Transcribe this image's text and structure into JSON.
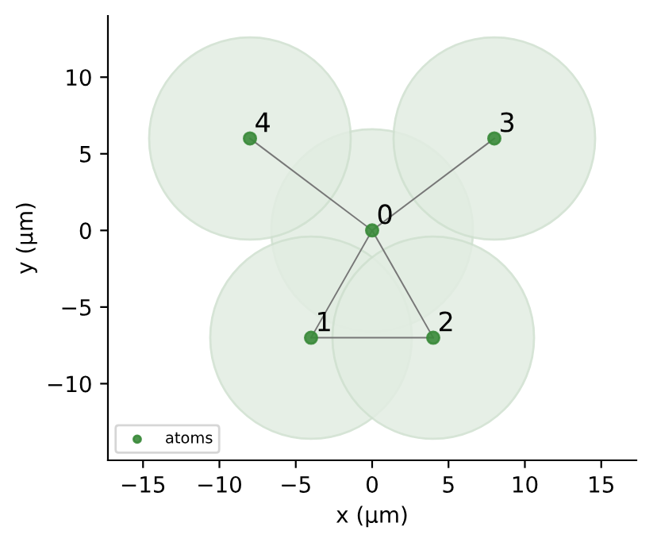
{
  "chart_data": {
    "type": "scatter",
    "xlabel": "x (µm)",
    "ylabel": "y (µm)",
    "xlim": [
      -17.3,
      17.3
    ],
    "ylim": [
      -15,
      14
    ],
    "xticks": [
      {
        "value": -15,
        "label": "−15"
      },
      {
        "value": -10,
        "label": "−10"
      },
      {
        "value": -5,
        "label": "−5"
      },
      0,
      5,
      10,
      15
    ],
    "yticks": [
      {
        "value": -10,
        "label": "−10"
      },
      {
        "value": -5,
        "label": "−5"
      },
      0,
      5,
      10
    ],
    "series": [
      {
        "name": "atoms",
        "color": "#3a8a3a",
        "x": [
          0,
          -4,
          4,
          8,
          -8
        ],
        "values": [
          0,
          -7,
          -7,
          6,
          6
        ]
      }
    ],
    "annotations": [
      {
        "text": "0",
        "x": 0,
        "y": 0
      },
      {
        "text": "1",
        "x": -4,
        "y": -7
      },
      {
        "text": "2",
        "x": 4,
        "y": -7
      },
      {
        "text": "3",
        "x": 8,
        "y": 6
      },
      {
        "text": "4",
        "x": -8,
        "y": 6
      }
    ],
    "marker": "circle",
    "legend": "bottom left",
    "grid": false
  }
}
